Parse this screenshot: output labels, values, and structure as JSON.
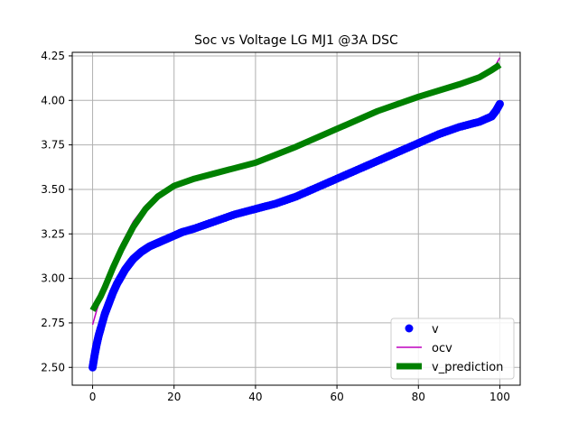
{
  "chart_data": {
    "type": "line",
    "title": "Soc vs Voltage LG MJ1 @3A DSC",
    "xlabel": "",
    "ylabel": "",
    "xlim": [
      -5,
      105
    ],
    "ylim": [
      2.4,
      4.27
    ],
    "xticks": [
      0,
      20,
      40,
      60,
      80,
      100
    ],
    "yticks": [
      2.5,
      2.75,
      3.0,
      3.25,
      3.5,
      3.75,
      4.0,
      4.25
    ],
    "xtick_labels": [
      "0",
      "20",
      "40",
      "60",
      "80",
      "100"
    ],
    "ytick_labels": [
      "2.50",
      "2.75",
      "3.00",
      "3.25",
      "3.50",
      "3.75",
      "4.00",
      "4.25"
    ],
    "grid": true,
    "legend_position": "lower right",
    "series": [
      {
        "name": "v",
        "style": "markers",
        "color": "#0000ff",
        "x": [
          0,
          0.5,
          1,
          1.5,
          2,
          3,
          4,
          5,
          6,
          7,
          8,
          9,
          10,
          12,
          14,
          16,
          18,
          20,
          22,
          25,
          30,
          35,
          40,
          45,
          50,
          55,
          60,
          65,
          70,
          75,
          80,
          85,
          90,
          95,
          98,
          99,
          100
        ],
        "y": [
          2.5,
          2.57,
          2.63,
          2.68,
          2.72,
          2.8,
          2.86,
          2.92,
          2.97,
          3.01,
          3.05,
          3.08,
          3.11,
          3.15,
          3.18,
          3.2,
          3.22,
          3.24,
          3.26,
          3.28,
          3.32,
          3.36,
          3.39,
          3.42,
          3.46,
          3.51,
          3.56,
          3.61,
          3.66,
          3.71,
          3.76,
          3.81,
          3.85,
          3.88,
          3.91,
          3.94,
          3.98
        ]
      },
      {
        "name": "ocv",
        "style": "line",
        "color": "#bf00bf",
        "x": [
          0,
          0.5,
          1,
          2,
          3,
          5,
          7,
          10,
          13,
          16,
          20,
          25,
          30,
          40,
          50,
          60,
          70,
          80,
          90,
          98,
          100
        ],
        "y": [
          2.74,
          2.78,
          2.82,
          2.89,
          2.96,
          3.08,
          3.19,
          3.32,
          3.41,
          3.47,
          3.52,
          3.56,
          3.59,
          3.65,
          3.74,
          3.84,
          3.94,
          4.02,
          4.09,
          4.16,
          4.24
        ]
      },
      {
        "name": "v_prediction",
        "style": "thick-line",
        "color": "#008000",
        "x": [
          0,
          1,
          2,
          3,
          5,
          7,
          10,
          13,
          16,
          20,
          25,
          30,
          40,
          50,
          60,
          70,
          80,
          90,
          95,
          98,
          100
        ],
        "y": [
          2.82,
          2.86,
          2.9,
          2.95,
          3.06,
          3.16,
          3.29,
          3.39,
          3.46,
          3.52,
          3.56,
          3.59,
          3.65,
          3.74,
          3.84,
          3.94,
          4.02,
          4.09,
          4.13,
          4.17,
          4.2
        ]
      }
    ]
  }
}
